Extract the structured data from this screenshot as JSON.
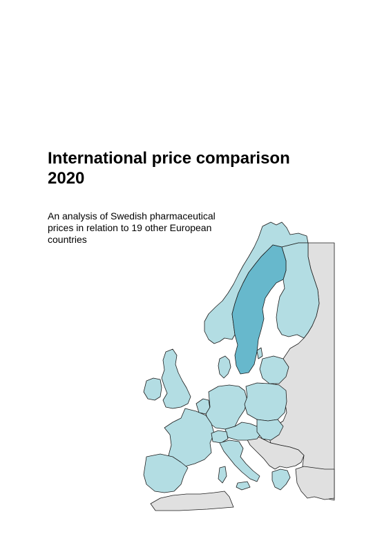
{
  "document": {
    "title_line1": "International price comparison",
    "title_line2": "2020",
    "subtitle_line1": "An analysis of Swedish pharmaceutical",
    "subtitle_line2": "prices in relation to 19 other European",
    "subtitle_line3": "countries"
  },
  "map": {
    "highlight_color": "#67b8cc",
    "comparison_color": "#b3dde3",
    "other_color": "#e0e0e0",
    "highlighted_country": "Sweden"
  }
}
